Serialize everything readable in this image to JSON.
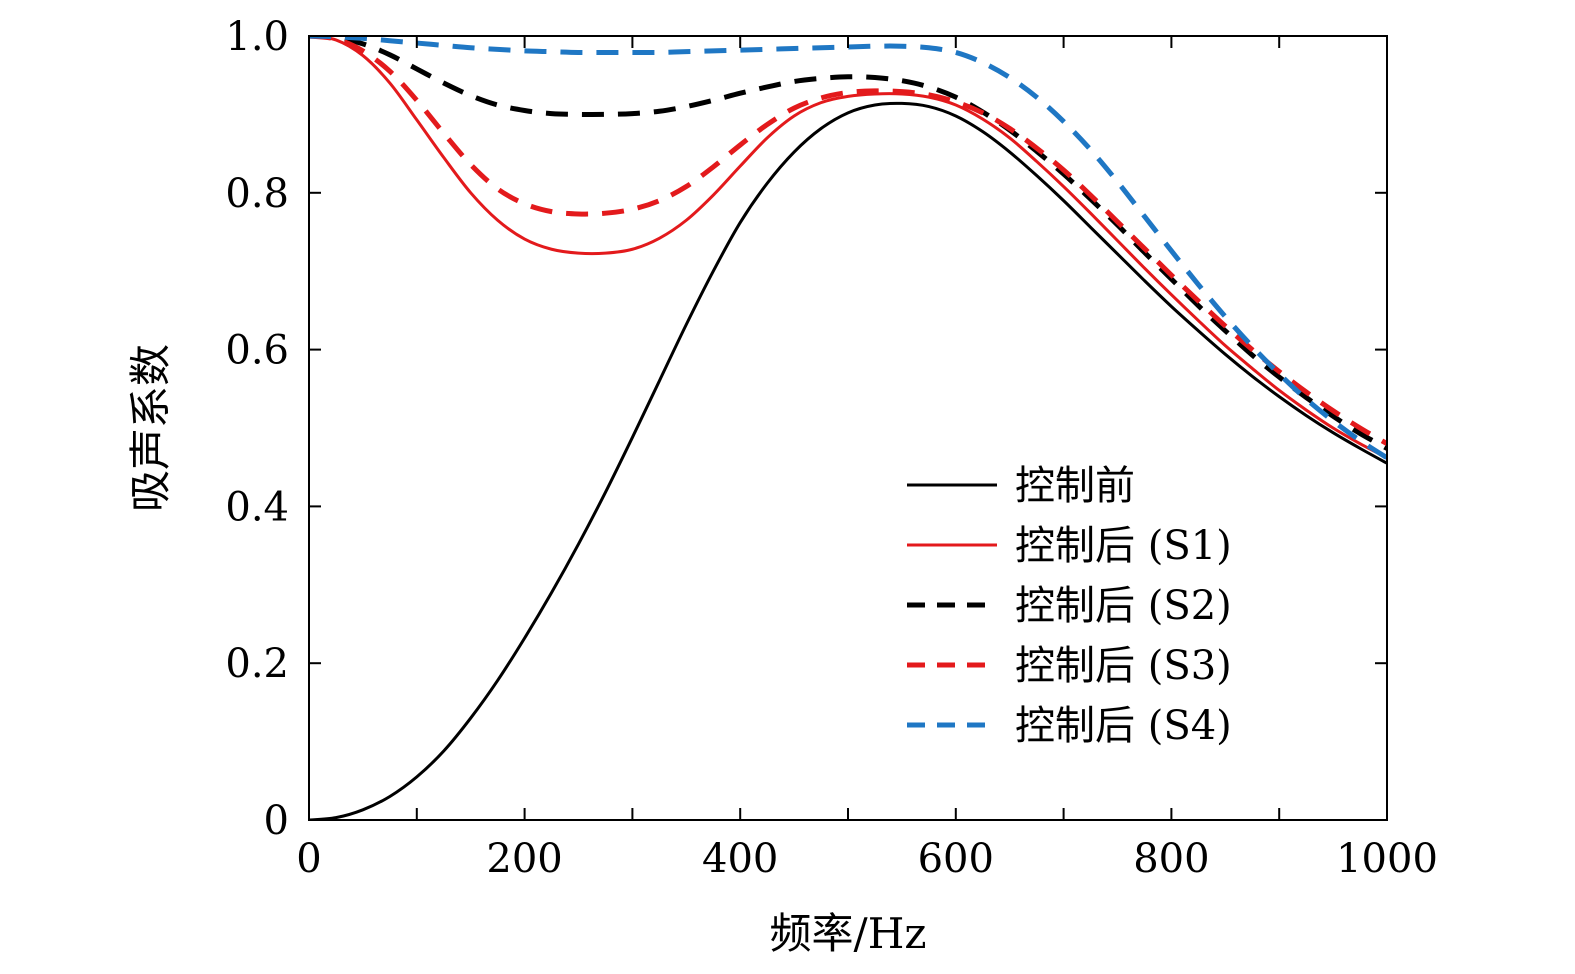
{
  "chart_data": {
    "type": "line",
    "title": "",
    "xlabel": "频率/Hz",
    "ylabel": "吸声系数",
    "xlim": [
      0,
      1000
    ],
    "ylim": [
      0,
      1.0
    ],
    "x_ticks": [
      0,
      200,
      400,
      600,
      800,
      1000
    ],
    "x_tick_labels": [
      "0",
      "200",
      "400",
      "600",
      "800",
      "1000"
    ],
    "x_minor_ticks": [
      100,
      300,
      500,
      700,
      900
    ],
    "y_ticks": [
      0,
      0.2,
      0.4,
      0.6,
      0.8,
      1.0
    ],
    "y_tick_labels": [
      "0",
      "0.2",
      "0.4",
      "0.6",
      "0.8",
      "1.0"
    ],
    "grid": false,
    "legend_position": "lower-right",
    "series": [
      {
        "name": "控制前",
        "color": "#000000",
        "style": "solid",
        "x": [
          0,
          25,
          50,
          75,
          100,
          125,
          150,
          175,
          200,
          225,
          250,
          275,
          300,
          325,
          350,
          375,
          400,
          425,
          450,
          475,
          500,
          525,
          550,
          575,
          600,
          625,
          650,
          675,
          700,
          725,
          750,
          775,
          800,
          825,
          850,
          875,
          900,
          925,
          950,
          975,
          1000
        ],
        "y": [
          0.0,
          0.003,
          0.013,
          0.03,
          0.055,
          0.088,
          0.13,
          0.178,
          0.232,
          0.29,
          0.352,
          0.418,
          0.488,
          0.56,
          0.632,
          0.7,
          0.762,
          0.812,
          0.852,
          0.882,
          0.902,
          0.912,
          0.914,
          0.91,
          0.898,
          0.878,
          0.852,
          0.822,
          0.79,
          0.756,
          0.722,
          0.688,
          0.655,
          0.624,
          0.594,
          0.566,
          0.54,
          0.516,
          0.494,
          0.474,
          0.455
        ]
      },
      {
        "name": "控制后 (S1)",
        "color": "#e31a1c",
        "style": "solid",
        "x": [
          0,
          25,
          50,
          75,
          100,
          125,
          150,
          175,
          200,
          225,
          250,
          275,
          300,
          325,
          350,
          375,
          400,
          425,
          450,
          475,
          500,
          525,
          550,
          575,
          600,
          625,
          650,
          675,
          700,
          725,
          750,
          775,
          800,
          825,
          850,
          875,
          900,
          925,
          950,
          975,
          1000
        ],
        "y": [
          1.0,
          0.995,
          0.975,
          0.94,
          0.893,
          0.845,
          0.8,
          0.765,
          0.741,
          0.728,
          0.723,
          0.723,
          0.728,
          0.742,
          0.765,
          0.797,
          0.834,
          0.87,
          0.898,
          0.915,
          0.923,
          0.926,
          0.926,
          0.922,
          0.912,
          0.894,
          0.87,
          0.84,
          0.808,
          0.774,
          0.739,
          0.704,
          0.67,
          0.637,
          0.605,
          0.576,
          0.548,
          0.523,
          0.5,
          0.48,
          0.462
        ]
      },
      {
        "name": "控制后 (S2)",
        "color": "#000000",
        "style": "dashed",
        "x": [
          0,
          25,
          50,
          75,
          100,
          125,
          150,
          175,
          200,
          225,
          250,
          275,
          300,
          325,
          350,
          375,
          400,
          425,
          450,
          475,
          500,
          525,
          550,
          575,
          600,
          625,
          650,
          675,
          700,
          725,
          750,
          775,
          800,
          825,
          850,
          875,
          900,
          925,
          950,
          975,
          1000
        ],
        "y": [
          1.0,
          0.998,
          0.99,
          0.976,
          0.958,
          0.94,
          0.924,
          0.912,
          0.905,
          0.901,
          0.9,
          0.9,
          0.901,
          0.904,
          0.91,
          0.918,
          0.927,
          0.935,
          0.942,
          0.946,
          0.948,
          0.947,
          0.943,
          0.935,
          0.922,
          0.903,
          0.88,
          0.853,
          0.824,
          0.792,
          0.759,
          0.724,
          0.69,
          0.656,
          0.624,
          0.593,
          0.565,
          0.539,
          0.515,
          0.493,
          0.474
        ]
      },
      {
        "name": "控制后 (S3)",
        "color": "#e31a1c",
        "style": "dashed",
        "x": [
          0,
          25,
          50,
          75,
          100,
          125,
          150,
          175,
          200,
          225,
          250,
          275,
          300,
          325,
          350,
          375,
          400,
          425,
          450,
          475,
          500,
          525,
          550,
          575,
          600,
          625,
          650,
          675,
          700,
          725,
          750,
          775,
          800,
          825,
          850,
          875,
          900,
          925,
          950,
          975,
          1000
        ],
        "y": [
          1.0,
          0.996,
          0.981,
          0.955,
          0.918,
          0.876,
          0.836,
          0.805,
          0.786,
          0.776,
          0.773,
          0.774,
          0.779,
          0.79,
          0.808,
          0.833,
          0.861,
          0.887,
          0.908,
          0.921,
          0.928,
          0.93,
          0.929,
          0.925,
          0.916,
          0.902,
          0.882,
          0.857,
          0.829,
          0.797,
          0.763,
          0.729,
          0.695,
          0.662,
          0.63,
          0.6,
          0.572,
          0.546,
          0.522,
          0.5,
          0.48
        ]
      },
      {
        "name": "控制后 (S4)",
        "color": "#1f77c4",
        "style": "dashed",
        "x": [
          0,
          25,
          50,
          75,
          100,
          125,
          150,
          175,
          200,
          225,
          250,
          275,
          300,
          325,
          350,
          375,
          400,
          425,
          450,
          475,
          500,
          525,
          550,
          575,
          600,
          625,
          650,
          675,
          700,
          725,
          750,
          775,
          800,
          825,
          850,
          875,
          900,
          925,
          950,
          975,
          1000
        ],
        "y": [
          1.0,
          0.999,
          0.997,
          0.994,
          0.991,
          0.988,
          0.985,
          0.983,
          0.981,
          0.98,
          0.979,
          0.979,
          0.979,
          0.979,
          0.98,
          0.981,
          0.982,
          0.983,
          0.984,
          0.985,
          0.986,
          0.987,
          0.987,
          0.985,
          0.979,
          0.966,
          0.947,
          0.922,
          0.891,
          0.855,
          0.814,
          0.77,
          0.726,
          0.683,
          0.642,
          0.604,
          0.569,
          0.537,
          0.509,
          0.484,
          0.462
        ]
      }
    ]
  }
}
